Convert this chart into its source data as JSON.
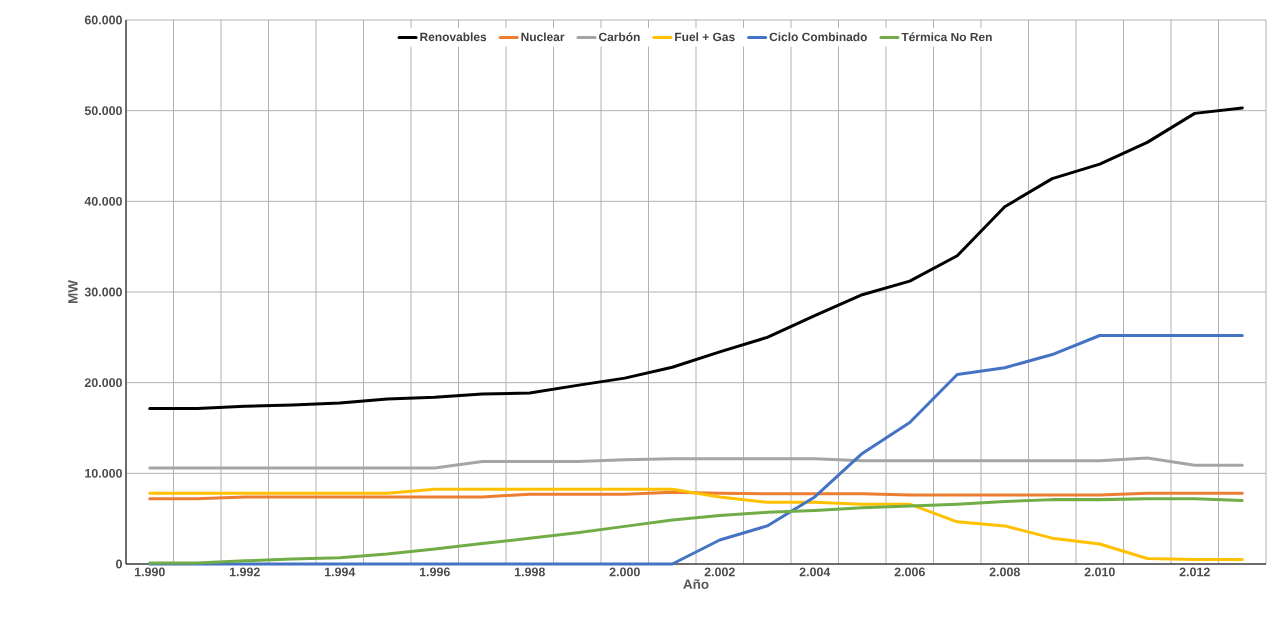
{
  "chart_data": {
    "type": "line",
    "xlabel": "Año",
    "ylabel": "MW",
    "categories": [
      "1.990",
      null,
      "1.992",
      null,
      "1.994",
      null,
      "1.996",
      null,
      "1.998",
      null,
      "2.000",
      null,
      "2.002",
      null,
      "2.004",
      null,
      "2.006",
      null,
      "2.008",
      null,
      "2.010",
      null,
      "2.012",
      null
    ],
    "series": [
      {
        "name": "Renovables",
        "color": "#000000",
        "values": [
          17150,
          17150,
          17400,
          17550,
          17750,
          18200,
          18400,
          18750,
          18850,
          19700,
          20500,
          21700,
          23400,
          25000,
          27400,
          29700,
          31200,
          34000,
          39400,
          42500,
          44100,
          46500,
          49700,
          50300
        ]
      },
      {
        "name": "Nuclear",
        "color": "#ed7d31",
        "values": [
          7200,
          7200,
          7400,
          7400,
          7400,
          7400,
          7400,
          7400,
          7700,
          7700,
          7700,
          7900,
          7800,
          7750,
          7750,
          7750,
          7600,
          7600,
          7600,
          7600,
          7600,
          7800,
          7800,
          7800
        ]
      },
      {
        "name": "Carbón",
        "color": "#a5a5a5",
        "values": [
          10600,
          10600,
          10600,
          10600,
          10600,
          10600,
          10600,
          11300,
          11300,
          11300,
          11500,
          11600,
          11600,
          11600,
          11600,
          11400,
          11400,
          11400,
          11400,
          11400,
          11400,
          11700,
          10900,
          10900
        ]
      },
      {
        "name": "Fuel + Gas",
        "color": "#ffc000",
        "values": [
          7800,
          7800,
          7800,
          7800,
          7800,
          7800,
          8250,
          8250,
          8250,
          8250,
          8250,
          8250,
          7400,
          6800,
          6800,
          6600,
          6600,
          4650,
          4200,
          2850,
          2200,
          600,
          500,
          500
        ]
      },
      {
        "name": "Ciclo Combinado",
        "color": "#4472c4",
        "values": [
          0,
          0,
          0,
          0,
          0,
          0,
          0,
          0,
          0,
          0,
          0,
          0,
          2650,
          4200,
          7400,
          12200,
          15600,
          20900,
          21650,
          23100,
          25200,
          25200,
          25200,
          25200
        ]
      },
      {
        "name": "Térmica No Ren",
        "color": "#70ad47",
        "values": [
          100,
          100,
          350,
          550,
          700,
          1100,
          1650,
          2250,
          2850,
          3450,
          4150,
          4850,
          5350,
          5700,
          5900,
          6200,
          6400,
          6600,
          6900,
          7100,
          7100,
          7200,
          7200,
          7000
        ]
      }
    ],
    "ylim": [
      0,
      60000
    ],
    "yticks": [
      {
        "value": 0,
        "label": "0"
      },
      {
        "value": 10000,
        "label": "10.000"
      },
      {
        "value": 20000,
        "label": "20.000"
      },
      {
        "value": 30000,
        "label": "30.000"
      },
      {
        "value": 40000,
        "label": "40.000"
      },
      {
        "value": 50000,
        "label": "50.000"
      },
      {
        "value": 60000,
        "label": "60.000"
      }
    ],
    "grid": true,
    "legend": "top",
    "marker": "none",
    "line_style": "solid"
  }
}
